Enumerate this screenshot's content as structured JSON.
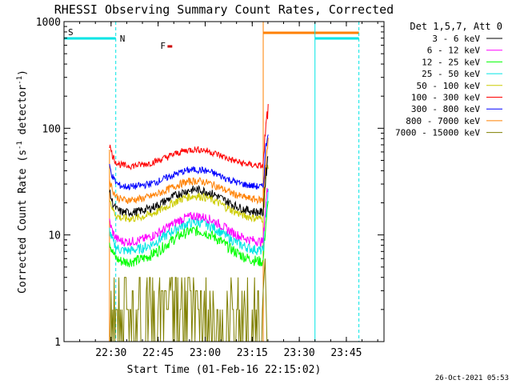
{
  "chart_data": {
    "type": "line",
    "title": "RHESSI Observing Summary Count Rates, Corrected",
    "xlabel": "Start Time (01-Feb-16 22:15:02)",
    "ylabel_main": "Corrected Count Rate (s",
    "ylabel_sup1": "-1",
    "ylabel_mid": " detector",
    "ylabel_sup2": "-1",
    "ylabel_end": ")",
    "yscale": "log",
    "ylim": [
      1,
      1000
    ],
    "xlim_minutes": [
      0,
      102
    ],
    "x_ticks": [
      {
        "label": "22:30",
        "min": 15
      },
      {
        "label": "22:45",
        "min": 30
      },
      {
        "label": "23:00",
        "min": 45
      },
      {
        "label": "23:15",
        "min": 60
      },
      {
        "label": "23:30",
        "min": 75
      },
      {
        "label": "23:45",
        "min": 90
      }
    ],
    "y_ticks": [
      {
        "label": "1",
        "value": 1
      },
      {
        "label": "10",
        "value": 10
      },
      {
        "label": "100",
        "value": 100
      },
      {
        "label": "1000",
        "value": 1000
      }
    ],
    "legend_header": "Det 1,5,7, Att 0",
    "series": [
      {
        "name": "3 - 6 keV",
        "color": "#000000",
        "base": 16,
        "hump": 0.3
      },
      {
        "name": "6 - 12 keV",
        "color": "#ff00ff",
        "base": 8.5,
        "hump": 0.35
      },
      {
        "name": "12 - 25 keV",
        "color": "#00ff00",
        "base": 5.5,
        "hump": 0.45
      },
      {
        "name": "25 - 50 keV",
        "color": "#00e5e5",
        "base": 7.0,
        "hump": 0.4
      },
      {
        "name": "50 - 100 keV",
        "color": "#cccc00",
        "base": 14,
        "hump": 0.3
      },
      {
        "name": "100 - 300 keV",
        "color": "#ff0000",
        "base": 44,
        "hump": 0.2
      },
      {
        "name": "300 - 800 keV",
        "color": "#0000ff",
        "base": 28,
        "hump": 0.21
      },
      {
        "name": "800 - 7000 keV",
        "color": "#ff8000",
        "base": 21,
        "hump": 0.24
      },
      {
        "name": "7000 - 15000 keV",
        "color": "#808000",
        "base": 1.5,
        "hump": 0.0
      }
    ],
    "data_window_minutes": [
      14.5,
      63.5
    ],
    "saa_markers": [
      {
        "label": "S",
        "color": "#ff8000",
        "start_min": 0,
        "end_min": 0
      },
      {
        "label": "N",
        "color": "#00e5e5",
        "start_min": 0,
        "end_min": 16.5
      },
      {
        "label": "F",
        "color": "#cc0000",
        "start_min": 33,
        "end_min": 34.5
      }
    ],
    "orange_bar_minutes": [
      63.5,
      94
    ],
    "cyan_bar_minutes": [
      80,
      94
    ],
    "grid": false,
    "legend_position": "right"
  },
  "footer": {
    "timestamp": "26-Oct-2021 05:53"
  }
}
